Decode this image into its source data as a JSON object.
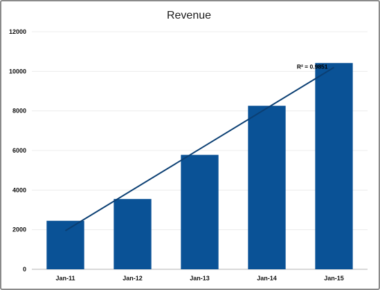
{
  "chart_data": {
    "type": "bar",
    "title": "Revenue",
    "categories": [
      "Jan-11",
      "Jan-12",
      "Jan-13",
      "Jan-14",
      "Jan-15"
    ],
    "values": [
      2450,
      3550,
      5780,
      8260,
      10420
    ],
    "ylim": [
      0,
      12000
    ],
    "yticks": [
      0,
      2000,
      4000,
      6000,
      8000,
      10000,
      12000
    ],
    "grid": true,
    "trendline": {
      "type": "linear",
      "label": "R² = 0.9851",
      "start_value": 1950,
      "end_value": 10200
    },
    "colors": {
      "bar": "#0a5296",
      "trendline": "#0b3f73",
      "grid": "#ececec",
      "axis": "#b0b0b0"
    }
  }
}
